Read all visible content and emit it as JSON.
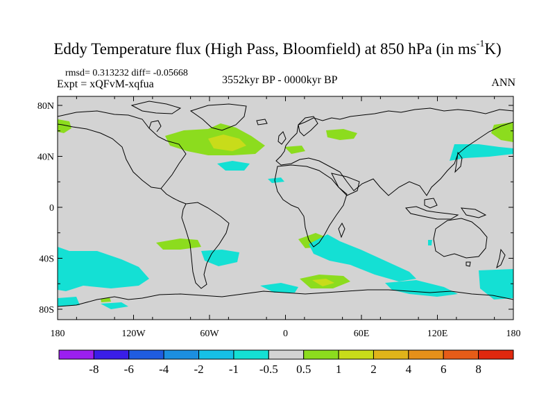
{
  "title": {
    "main": "Eddy Temperature flux (High Pass, Bloomfield) at 850 hPa (in ms",
    "sup": "-1",
    "unit_end": "K)"
  },
  "stats_text": "rmsd= 0.313232 diff= -0.05668",
  "expt_text": "Expt = xQFvM-xqfua",
  "period_text": "3552kyr BP - 0000kyr BP",
  "season_text": "ANN",
  "lat_labels": [
    "80N",
    "40N",
    "0",
    "40S",
    "80S"
  ],
  "lon_labels": [
    "180",
    "120W",
    "60W",
    "0",
    "60E",
    "120E",
    "180"
  ],
  "colorbar": {
    "labels": [
      "-8",
      "-6",
      "-4",
      "-2",
      "-1",
      "-0.5",
      "0.5",
      "1",
      "2",
      "4",
      "6",
      "8"
    ],
    "colors": [
      "#9b1ff0",
      "#3a1ee8",
      "#1f5ce0",
      "#1c8fe0",
      "#16c0e6",
      "#14e0d4",
      "#d3d3d3",
      "#8cdc1e",
      "#c8dc1a",
      "#e0b41a",
      "#e6901a",
      "#e65c18",
      "#e0280e"
    ]
  },
  "map_colors": {
    "background": "#d3d3d3",
    "cyan_level": "#14e0d4",
    "green_level": "#8cdc1e",
    "yellow_level": "#c8dc1a",
    "coast": "#000000"
  }
}
